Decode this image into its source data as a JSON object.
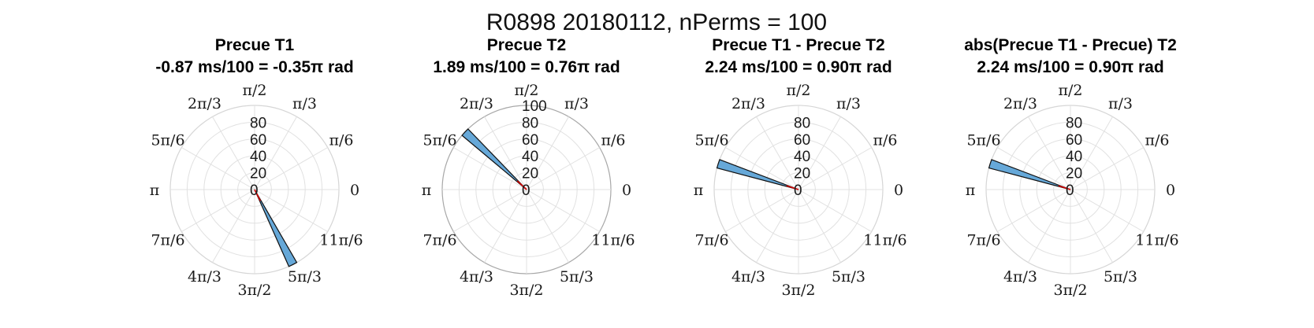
{
  "figure": {
    "title": "R0898 20180112, nPerms = 100"
  },
  "chart_data": [
    {
      "type": "polar-histogram",
      "title": "Precue T1",
      "subtitle": "-0.87 ms/100 = -0.35π rad",
      "rticks": [
        "0",
        "20",
        "40",
        "60",
        "80"
      ],
      "rlim": [
        0,
        100
      ],
      "outer_circle_visible": false,
      "bins": [
        {
          "theta_center_rad": -1.1,
          "width_rad": 0.105,
          "count": 100
        }
      ],
      "mean_angle_rad": -1.1,
      "angle_labels": [
        "0",
        "π/6",
        "π/3",
        "π/2",
        "2π/3",
        "5π/6",
        "π",
        "7π/6",
        "4π/3",
        "3π/2",
        "5π/3",
        "11π/6"
      ]
    },
    {
      "type": "polar-histogram",
      "title": "Precue T2",
      "subtitle": "1.89 ms/100 = 0.76π rad",
      "rticks": [
        "0",
        "20",
        "40",
        "60",
        "80",
        "100"
      ],
      "rlim": [
        0,
        100
      ],
      "outer_circle_visible": true,
      "bins": [
        {
          "theta_center_rad": 2.39,
          "width_rad": 0.105,
          "count": 100
        }
      ],
      "mean_angle_rad": 2.39,
      "angle_labels": [
        "0",
        "π/6",
        "π/3",
        "π/2",
        "2π/3",
        "5π/6",
        "π",
        "7π/6",
        "4π/3",
        "3π/2",
        "5π/3",
        "11π/6"
      ]
    },
    {
      "type": "polar-histogram",
      "title": "Precue T1 - Precue T2",
      "subtitle": "2.24 ms/100 = 0.90π rad",
      "rticks": [
        "0",
        "20",
        "40",
        "60",
        "80"
      ],
      "rlim": [
        0,
        100
      ],
      "outer_circle_visible": false,
      "bins": [
        {
          "theta_center_rad": 2.83,
          "width_rad": 0.105,
          "count": 100
        }
      ],
      "mean_angle_rad": 2.83,
      "angle_labels": [
        "0",
        "π/6",
        "π/3",
        "π/2",
        "2π/3",
        "5π/6",
        "π",
        "7π/6",
        "4π/3",
        "3π/2",
        "5π/3",
        "11π/6"
      ]
    },
    {
      "type": "polar-histogram",
      "title": "abs(Precue T1 - Precue) T2",
      "subtitle": "2.24 ms/100 = 0.90π rad",
      "rticks": [
        "0",
        "20",
        "40",
        "60",
        "80"
      ],
      "rlim": [
        0,
        100
      ],
      "outer_circle_visible": false,
      "bins": [
        {
          "theta_center_rad": 2.83,
          "width_rad": 0.105,
          "count": 100
        }
      ],
      "mean_angle_rad": 2.83,
      "angle_labels": [
        "0",
        "π/6",
        "π/3",
        "π/2",
        "2π/3",
        "5π/6",
        "π",
        "7π/6",
        "4π/3",
        "3π/2",
        "5π/3",
        "11π/6"
      ]
    }
  ],
  "colors": {
    "wedge_fill": "#66a8d8",
    "mean_line": "#d40000",
    "grid": "#e1e1e1"
  }
}
